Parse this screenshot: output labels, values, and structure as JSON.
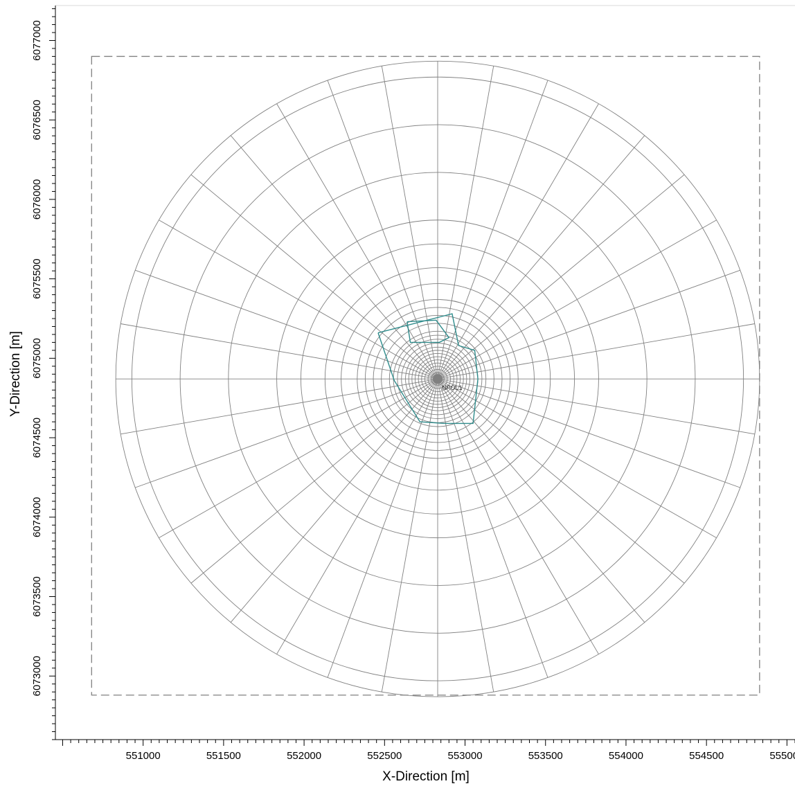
{
  "chart_data": {
    "type": "scatter",
    "title": "",
    "xlabel": "X-Direction [m]",
    "ylabel": "Y-Direction [m]",
    "xlim": [
      550455,
      555050
    ],
    "ylim": [
      6072600,
      6077220
    ],
    "x_ticks": [
      551000,
      551500,
      552000,
      552500,
      553000,
      553500,
      554000,
      554500,
      555000
    ],
    "y_ticks": [
      6073000,
      6073500,
      6074000,
      6074500,
      6075000,
      6075500,
      6076000,
      6076500,
      6077000
    ],
    "x_tick_labels": [
      "551000",
      "551500",
      "552000",
      "552500",
      "553000",
      "553500",
      "554000",
      "554500",
      "555000"
    ],
    "y_tick_labels": [
      "6073000",
      "6073500",
      "6074000",
      "6074500",
      "6075000",
      "6075500",
      "6076000",
      "6076500",
      "6077000"
    ],
    "grid": false,
    "receptor_grid": {
      "center": [
        552830,
        6074870
      ],
      "ring_radii": [
        20,
        40,
        60,
        80,
        100,
        120,
        140,
        160,
        180,
        200,
        225,
        250,
        275,
        300,
        350,
        400,
        450,
        500,
        600,
        700,
        850,
        1000,
        1300,
        1600,
        1900,
        2000
      ],
      "spoke_count": 36,
      "color": "#808080"
    },
    "domain_box": {
      "x": [
        550680,
        554830
      ],
      "y": [
        6072880,
        6076900
      ],
      "color": "#808080"
    },
    "source_polygons": [
      {
        "color": "#2e8b8b",
        "x": [
          552460,
          552920,
          552960,
          553060,
          553080,
          553050,
          552870,
          552720,
          552560,
          552460
        ],
        "y": [
          6075160,
          6075280,
          6075080,
          6075050,
          6074870,
          6074590,
          6074590,
          6074600,
          6074860,
          6075160
        ]
      },
      {
        "color": "#2e8b8b",
        "x": [
          552640,
          552820,
          552900,
          552840,
          552660,
          552640
        ],
        "y": [
          6075230,
          6075240,
          6075130,
          6075100,
          6075100,
          6075230
        ]
      }
    ],
    "point_label": {
      "text": "NPOL1",
      "x": 552830,
      "y": 6074870,
      "color": "#808080"
    }
  }
}
